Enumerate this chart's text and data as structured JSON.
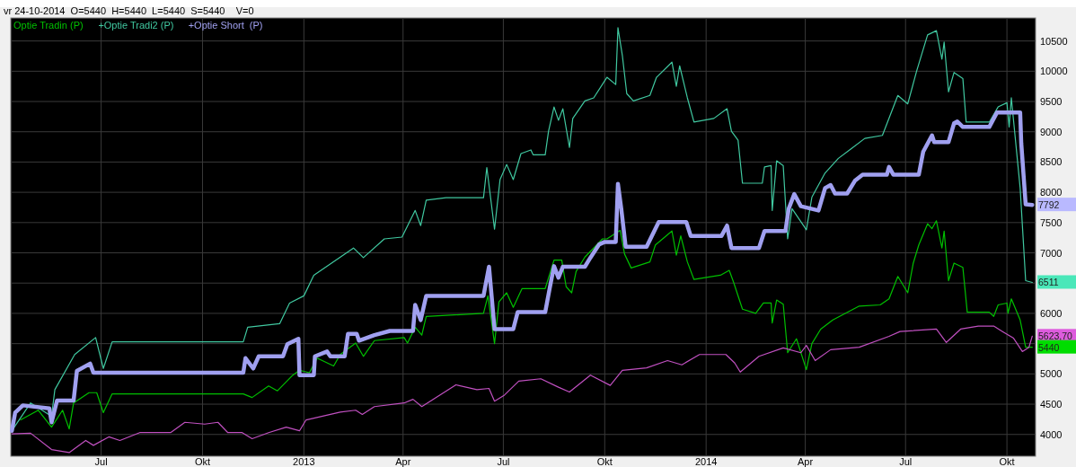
{
  "chart_data": {
    "type": "line",
    "title": "vr 24-10-2014  O=5440  H=5440  L=5440  S=5440    V=0",
    "legend": "top left",
    "grid": true,
    "line_style": "solid",
    "marker": "none",
    "xlim": [
      "2012-04-10",
      "2014-10-27"
    ],
    "xticks": [
      {
        "value": "2012-07-01",
        "label": "Jul"
      },
      {
        "value": "2012-10-01",
        "label": "Okt"
      },
      {
        "value": "2013-01-01",
        "label": "2013"
      },
      {
        "value": "2013-04-01",
        "label": "Apr"
      },
      {
        "value": "2013-07-01",
        "label": "Jul"
      },
      {
        "value": "2013-10-01",
        "label": "Okt"
      },
      {
        "value": "2014-01-01",
        "label": "2014"
      },
      {
        "value": "2014-04-01",
        "label": "Apr"
      },
      {
        "value": "2014-07-01",
        "label": "Jul"
      },
      {
        "value": "2014-10-01",
        "label": "Okt"
      }
    ],
    "ylim": [
      3640,
      10880
    ],
    "yticks": [
      4000,
      4500,
      5000,
      {
        "value": 5500,
        "label": null
      },
      6000,
      {
        "value": 6500,
        "label": null
      },
      7000,
      7500,
      8000,
      8500,
      9000,
      9500,
      10000,
      10500
    ],
    "annotations": [
      {
        "text": "7792",
        "x": "2014-10-24",
        "y": 7792
      },
      {
        "text": "6511",
        "x": "2014-10-24",
        "y": 6511
      },
      {
        "text": "5623,70",
        "x": "2014-10-24",
        "y": 5623.7
      },
      {
        "text": "5440",
        "x": "2014-10-24",
        "y": 5440
      }
    ],
    "series": [
      {
        "name": "Optie Tradin (P)",
        "color": "#00c000",
        "x": [
          "2012-04-19",
          "2012-05-05",
          "2012-05-17",
          "2012-05-27",
          "2012-06-02",
          "2012-06-06",
          "2012-06-20",
          "2012-06-27",
          "2012-07-03",
          "2012-07-11",
          "2012-11-07",
          "2012-11-15",
          "2012-11-30",
          "2012-12-08",
          "2012-12-22",
          "2012-12-28",
          "2013-01-06",
          "2013-01-13",
          "2013-01-28",
          "2013-02-03",
          "2013-02-17",
          "2013-02-24",
          "2013-03-06",
          "2013-04-02",
          "2013-04-05",
          "2013-04-12",
          "2013-04-18",
          "2013-04-22",
          "2013-06-13",
          "2013-06-17",
          "2013-06-23",
          "2013-06-27",
          "2013-07-04",
          "2013-07-10",
          "2013-07-18",
          "2013-08-08",
          "2013-08-16",
          "2013-08-23",
          "2013-08-27",
          "2013-09-01",
          "2013-09-05",
          "2013-09-13",
          "2013-09-29",
          "2013-10-03",
          "2013-10-15",
          "2013-10-19",
          "2013-10-25",
          "2013-11-11",
          "2013-11-16",
          "2013-12-01",
          "2013-12-05",
          "2013-12-09",
          "2013-12-15",
          "2013-12-21",
          "2014-01-14",
          "2014-01-22",
          "2014-01-26",
          "2014-02-03",
          "2014-02-15",
          "2014-02-22",
          "2014-03-01",
          "2014-03-02",
          "2014-03-06",
          "2014-03-12",
          "2014-03-16",
          "2014-03-24",
          "2014-04-02",
          "2014-04-07",
          "2014-04-15",
          "2014-04-26",
          "2014-05-20",
          "2014-06-08",
          "2014-06-16",
          "2014-06-24",
          "2014-07-03",
          "2014-07-08",
          "2014-07-13",
          "2014-07-21",
          "2014-07-25",
          "2014-07-29",
          "2014-08-03",
          "2014-08-05",
          "2014-08-09",
          "2014-08-14",
          "2014-08-22",
          "2014-08-26",
          "2014-09-15",
          "2014-09-19",
          "2014-09-23",
          "2014-10-01",
          "2014-10-02",
          "2014-10-05",
          "2014-10-13",
          "2014-10-18",
          "2014-10-24"
        ],
        "values": [
          4240,
          4400,
          4120,
          4400,
          4090,
          4520,
          4690,
          4690,
          4360,
          4670,
          4670,
          4610,
          4800,
          4720,
          4980,
          5060,
          5020,
          5260,
          5130,
          5320,
          5510,
          5290,
          5550,
          5600,
          5510,
          5770,
          5640,
          5950,
          6000,
          6290,
          5500,
          6190,
          6340,
          6100,
          6410,
          6410,
          6880,
          6880,
          6440,
          6340,
          6690,
          6930,
          7230,
          7230,
          7370,
          6980,
          6750,
          6850,
          7130,
          7360,
          6960,
          7280,
          6850,
          6560,
          6630,
          6710,
          6510,
          6070,
          6000,
          6170,
          6170,
          5840,
          6220,
          6150,
          5350,
          5580,
          5070,
          5500,
          5740,
          5890,
          6120,
          6140,
          6240,
          6610,
          6340,
          6830,
          7130,
          7480,
          7400,
          7530,
          7080,
          7360,
          6540,
          6830,
          6760,
          6020,
          6020,
          5950,
          6140,
          6170,
          6000,
          6240,
          5890,
          5440,
          5440
        ]
      },
      {
        "name": "+Optie Tradi2 (P)",
        "color": "#40c8a0",
        "x": [
          "2012-04-11",
          "2012-04-28",
          "2012-05-17",
          "2012-05-20",
          "2012-06-07",
          "2012-06-26",
          "2012-07-03",
          "2012-07-11",
          "2012-11-07",
          "2012-11-11",
          "2012-12-10",
          "2012-12-19",
          "2013-01-01",
          "2013-01-10",
          "2013-02-15",
          "2013-02-24",
          "2013-03-15",
          "2013-03-31",
          "2013-04-12",
          "2013-04-17",
          "2013-04-22",
          "2013-05-10",
          "2013-06-13",
          "2013-06-16",
          "2013-06-23",
          "2013-06-28",
          "2013-07-04",
          "2013-07-10",
          "2013-07-17",
          "2013-07-26",
          "2013-07-28",
          "2013-08-08",
          "2013-08-11",
          "2013-08-16",
          "2013-08-20",
          "2013-08-24",
          "2013-08-30",
          "2013-09-02",
          "2013-09-13",
          "2013-09-21",
          "2013-10-03",
          "2013-10-11",
          "2013-10-13",
          "2013-10-17",
          "2013-10-21",
          "2013-10-27",
          "2013-11-11",
          "2013-11-17",
          "2013-12-01",
          "2013-12-05",
          "2013-12-08",
          "2013-12-15",
          "2013-12-21",
          "2014-01-08",
          "2014-01-20",
          "2014-01-24",
          "2014-01-30",
          "2014-02-03",
          "2014-02-21",
          "2014-02-23",
          "2014-03-01",
          "2014-03-02",
          "2014-03-06",
          "2014-03-12",
          "2014-03-16",
          "2014-03-20",
          "2014-04-02",
          "2014-04-07",
          "2014-04-19",
          "2014-04-24",
          "2014-05-01",
          "2014-05-12",
          "2014-05-25",
          "2014-06-10",
          "2014-06-24",
          "2014-07-03",
          "2014-07-11",
          "2014-07-21",
          "2014-07-29",
          "2014-08-03",
          "2014-08-05",
          "2014-08-09",
          "2014-08-14",
          "2014-08-22",
          "2014-08-25",
          "2014-09-15",
          "2014-09-23",
          "2014-10-01",
          "2014-10-03",
          "2014-10-05",
          "2014-10-13",
          "2014-10-18",
          "2014-10-24"
        ],
        "values": [
          4060,
          4520,
          4300,
          4740,
          5320,
          5600,
          5090,
          5530,
          5530,
          5770,
          5830,
          6170,
          6290,
          6630,
          7080,
          6920,
          7230,
          7260,
          7700,
          7450,
          7870,
          7910,
          7910,
          8410,
          7390,
          8210,
          8460,
          8210,
          8640,
          8700,
          8620,
          8620,
          9010,
          9410,
          9190,
          9380,
          8740,
          9220,
          9510,
          9560,
          9900,
          9780,
          10720,
          10260,
          9630,
          9510,
          9600,
          9900,
          10150,
          9750,
          10090,
          9560,
          9160,
          9220,
          9380,
          9010,
          8860,
          8150,
          8150,
          8420,
          8440,
          7700,
          8520,
          8440,
          7230,
          7730,
          7380,
          7920,
          8320,
          8420,
          8560,
          8710,
          8890,
          8940,
          9600,
          9460,
          10000,
          10600,
          10670,
          10200,
          10480,
          9660,
          9980,
          9880,
          9160,
          9160,
          9410,
          9480,
          9080,
          9560,
          8070,
          6540,
          6511
        ]
      },
      {
        "name": "+Optie Short  (P)",
        "color": "#a0a0f0",
        "x": [
          "2012-04-11",
          "2012-04-14",
          "2012-04-21",
          "2012-05-15",
          "2012-05-17",
          "2012-05-22",
          "2012-06-06",
          "2012-06-09",
          "2012-06-21",
          "2012-06-24",
          "2012-11-07",
          "2012-11-09",
          "2012-11-16",
          "2012-11-21",
          "2012-12-13",
          "2012-12-17",
          "2012-12-27",
          "2012-12-28",
          "2013-01-10",
          "2013-01-11",
          "2013-01-22",
          "2013-01-25",
          "2013-02-07",
          "2013-02-10",
          "2013-02-18",
          "2013-02-20",
          "2013-03-06",
          "2013-03-20",
          "2013-04-10",
          "2013-04-12",
          "2013-04-17",
          "2013-04-22",
          "2013-06-13",
          "2013-06-18",
          "2013-06-23",
          "2013-07-10",
          "2013-07-14",
          "2013-08-08",
          "2013-08-12",
          "2013-08-16",
          "2013-08-20",
          "2013-08-24",
          "2013-09-13",
          "2013-09-18",
          "2013-09-26",
          "2013-10-01",
          "2013-10-11",
          "2013-10-13",
          "2013-10-16",
          "2013-10-20",
          "2013-11-08",
          "2013-11-19",
          "2013-12-14",
          "2013-12-18",
          "2014-01-15",
          "2014-01-20",
          "2014-01-24",
          "2014-02-18",
          "2014-02-23",
          "2014-03-14",
          "2014-03-17",
          "2014-03-22",
          "2014-03-28",
          "2014-04-13",
          "2014-04-19",
          "2014-04-24",
          "2014-04-28",
          "2014-05-09",
          "2014-05-16",
          "2014-05-23",
          "2014-06-14",
          "2014-06-16",
          "2014-06-20",
          "2014-07-13",
          "2014-07-17",
          "2014-07-25",
          "2014-07-27",
          "2014-08-09",
          "2014-08-14",
          "2014-08-17",
          "2014-08-22",
          "2014-09-15",
          "2014-09-22",
          "2014-10-13",
          "2014-10-14",
          "2014-10-18",
          "2014-10-24"
        ],
        "values": [
          4060,
          4360,
          4480,
          4430,
          4200,
          4560,
          4560,
          5050,
          5170,
          5020,
          5020,
          5260,
          5090,
          5290,
          5290,
          5490,
          5580,
          4980,
          4980,
          5290,
          5370,
          5290,
          5290,
          5660,
          5660,
          5550,
          5640,
          5710,
          5710,
          6140,
          5890,
          6290,
          6290,
          6770,
          5740,
          5740,
          6020,
          6020,
          6410,
          6780,
          6590,
          6770,
          6770,
          6920,
          7140,
          7180,
          7180,
          8140,
          7730,
          7100,
          7100,
          7510,
          7510,
          7280,
          7280,
          7450,
          7080,
          7080,
          7360,
          7360,
          7730,
          7970,
          7770,
          7700,
          8070,
          8120,
          7980,
          7980,
          8190,
          8290,
          8290,
          8420,
          8290,
          8290,
          8670,
          8940,
          8830,
          8830,
          9140,
          9170,
          9080,
          9080,
          9320,
          9320,
          8810,
          7800,
          7792
        ]
      },
      {
        "color": "#c050c0",
        "x": [
          "2012-04-11",
          "2012-04-28",
          "2012-05-17",
          "2012-06-02",
          "2012-06-17",
          "2012-06-24",
          "2012-07-08",
          "2012-07-18",
          "2012-08-05",
          "2012-09-02",
          "2012-09-15",
          "2012-10-03",
          "2012-10-15",
          "2012-10-24",
          "2012-11-06",
          "2012-11-15",
          "2012-11-30",
          "2012-12-16",
          "2012-12-28",
          "2013-01-03",
          "2013-02-03",
          "2013-02-17",
          "2013-02-23",
          "2013-03-06",
          "2013-04-02",
          "2013-04-10",
          "2013-04-18",
          "2013-05-19",
          "2013-06-07",
          "2013-06-18",
          "2013-06-23",
          "2013-07-02",
          "2013-07-15",
          "2013-08-04",
          "2013-08-20",
          "2013-08-30",
          "2013-09-18",
          "2013-10-06",
          "2013-10-17",
          "2013-11-08",
          "2013-11-27",
          "2013-12-10",
          "2013-12-26",
          "2014-01-19",
          "2014-01-27",
          "2014-02-01",
          "2014-02-18",
          "2014-03-12",
          "2014-03-28",
          "2014-04-02",
          "2014-04-10",
          "2014-04-24",
          "2014-05-20",
          "2014-06-16",
          "2014-06-26",
          "2014-07-29",
          "2014-08-07",
          "2014-08-20",
          "2014-09-05",
          "2014-09-19",
          "2014-09-27",
          "2014-10-07",
          "2014-10-15",
          "2014-10-21",
          "2014-10-24"
        ],
        "values": [
          4010,
          4020,
          3750,
          3700,
          3900,
          3820,
          3960,
          3900,
          4030,
          4030,
          4200,
          4170,
          4200,
          4030,
          4030,
          3930,
          4030,
          4120,
          4060,
          4240,
          4370,
          4400,
          4330,
          4460,
          4520,
          4580,
          4460,
          4820,
          4740,
          4760,
          4550,
          4650,
          4880,
          4920,
          4780,
          4700,
          4980,
          4810,
          5060,
          5100,
          5220,
          5150,
          5320,
          5320,
          5180,
          5030,
          5290,
          5430,
          5350,
          5470,
          5220,
          5400,
          5440,
          5620,
          5700,
          5740,
          5520,
          5740,
          5790,
          5790,
          5700,
          5590,
          5370,
          5440,
          5623.7
        ]
      }
    ]
  }
}
